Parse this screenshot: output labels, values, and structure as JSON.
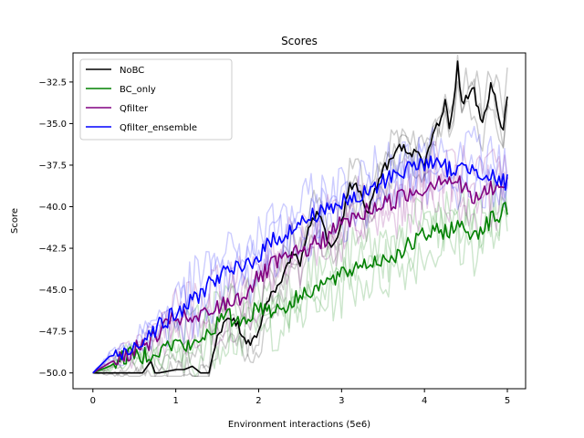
{
  "chart_data": {
    "type": "line",
    "title": "Scores",
    "xlabel": "Environment interactions (5e6)",
    "ylabel": "Score",
    "xlim": [
      -0.24,
      5.22
    ],
    "ylim": [
      -50.95,
      -30.75
    ],
    "xticks": [
      0,
      1,
      2,
      3,
      4,
      5
    ],
    "xtick_labels": [
      "0",
      "1",
      "2",
      "3",
      "4",
      "5"
    ],
    "yticks": [
      -50.0,
      -47.5,
      -45.0,
      -42.5,
      -40.0,
      -37.5,
      -35.0,
      -32.5
    ],
    "ytick_labels": [
      "−50.0",
      "−47.5",
      "−45.0",
      "−42.5",
      "−40.0",
      "−37.5",
      "−35.0",
      "−32.5"
    ],
    "grid": false,
    "legend_position": "top-left",
    "series": [
      {
        "name": "NoBC",
        "color": "#000000",
        "x": [
          0,
          0.2,
          0.4,
          0.6,
          0.7,
          0.75,
          0.8,
          0.9,
          1.0,
          1.1,
          1.2,
          1.3,
          1.4,
          1.45,
          1.5,
          1.6,
          1.7,
          1.8,
          1.9,
          2.0,
          2.1,
          2.2,
          2.3,
          2.4,
          2.5,
          2.6,
          2.7,
          2.8,
          2.9,
          3.0,
          3.1,
          3.2,
          3.3,
          3.4,
          3.5,
          3.6,
          3.7,
          3.8,
          3.9,
          4.0,
          4.1,
          4.2,
          4.25,
          4.3,
          4.35,
          4.4,
          4.45,
          4.5,
          4.6,
          4.7,
          4.8,
          4.9,
          4.95,
          5.0
        ],
        "y": [
          -50.0,
          -50.0,
          -50.0,
          -50.0,
          -49.3,
          -50.0,
          -50.0,
          -49.9,
          -49.8,
          -49.8,
          -49.6,
          -50.0,
          -50.0,
          -48.8,
          -47.8,
          -47.0,
          -46.6,
          -47.8,
          -48.5,
          -47.6,
          -45.8,
          -45.1,
          -44.2,
          -42.8,
          -43.3,
          -41.5,
          -40.1,
          -41.6,
          -42.3,
          -40.8,
          -38.7,
          -38.8,
          -40.5,
          -39.0,
          -37.8,
          -37.2,
          -36.5,
          -36.5,
          -36.8,
          -37.6,
          -35.7,
          -34.6,
          -33.4,
          -35.5,
          -34.0,
          -31.2,
          -33.8,
          -33.4,
          -33.1,
          -35.0,
          -32.7,
          -34.4,
          -35.6,
          -33.1
        ]
      },
      {
        "name": "BC_only",
        "color": "#008000",
        "x": [
          0,
          0.2,
          0.4,
          0.6,
          0.8,
          1.0,
          1.2,
          1.4,
          1.6,
          1.8,
          2.0,
          2.2,
          2.4,
          2.6,
          2.8,
          3.0,
          3.2,
          3.4,
          3.6,
          3.8,
          4.0,
          4.2,
          4.4,
          4.6,
          4.8,
          5.0
        ],
        "y": [
          -50.0,
          -49.6,
          -49.0,
          -48.9,
          -48.6,
          -48.2,
          -48.5,
          -47.5,
          -46.6,
          -46.9,
          -46.0,
          -46.2,
          -45.8,
          -45.0,
          -44.6,
          -44.2,
          -43.5,
          -43.3,
          -43.0,
          -42.4,
          -41.7,
          -41.5,
          -41.2,
          -41.6,
          -40.8,
          -40.2
        ]
      },
      {
        "name": "Qfilter",
        "color": "#800080",
        "x": [
          0,
          0.2,
          0.4,
          0.6,
          0.8,
          1.0,
          1.2,
          1.4,
          1.6,
          1.8,
          2.0,
          2.2,
          2.4,
          2.6,
          2.8,
          3.0,
          3.2,
          3.4,
          3.6,
          3.8,
          4.0,
          4.2,
          4.4,
          4.6,
          4.8,
          5.0
        ],
        "y": [
          -50.0,
          -49.4,
          -48.9,
          -48.4,
          -47.7,
          -46.6,
          -46.9,
          -46.4,
          -45.8,
          -45.4,
          -44.3,
          -43.4,
          -43.0,
          -42.5,
          -41.9,
          -41.0,
          -40.6,
          -40.0,
          -39.7,
          -39.2,
          -38.9,
          -38.2,
          -38.5,
          -39.6,
          -38.9,
          -38.7
        ]
      },
      {
        "name": "Qfilter_ensemble",
        "color": "#0000ff",
        "x": [
          0,
          0.2,
          0.4,
          0.6,
          0.8,
          1.0,
          1.2,
          1.4,
          1.6,
          1.8,
          2.0,
          2.2,
          2.4,
          2.6,
          2.8,
          3.0,
          3.2,
          3.4,
          3.6,
          3.8,
          4.0,
          4.2,
          4.4,
          4.6,
          4.8,
          5.0
        ],
        "y": [
          -50.0,
          -49.0,
          -48.8,
          -47.9,
          -47.1,
          -46.5,
          -45.7,
          -44.6,
          -44.0,
          -43.7,
          -42.9,
          -41.9,
          -41.4,
          -40.7,
          -40.1,
          -39.8,
          -39.5,
          -38.9,
          -38.1,
          -37.7,
          -37.3,
          -37.6,
          -37.8,
          -37.6,
          -38.2,
          -38.6
        ]
      }
    ]
  }
}
